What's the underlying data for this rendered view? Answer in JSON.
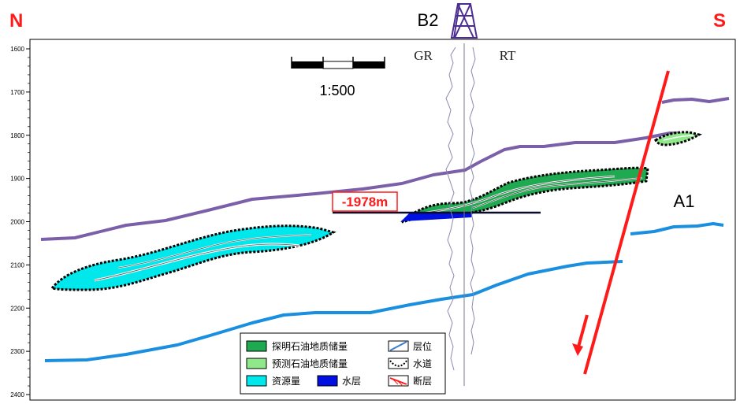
{
  "compass": {
    "north": "N",
    "south": "S"
  },
  "well": {
    "name": "B2",
    "log_left": "GR",
    "log_right": "RT"
  },
  "scale": {
    "label": "1:500"
  },
  "annotation": {
    "depth_label": "-1978m",
    "fault_name": "A1"
  },
  "depth_axis": {
    "ticks": [
      "1600",
      "1700",
      "1800",
      "1900",
      "2000",
      "2100",
      "2200",
      "2300",
      "2400"
    ]
  },
  "legend": {
    "items": [
      {
        "label": "探明石油地质储量",
        "color": "#1faa52"
      },
      {
        "label": "层位",
        "color": "#3a7fd0"
      },
      {
        "label": "预测石油地质储量",
        "color": "#8fe88a"
      },
      {
        "label": "水道",
        "color": "#000000"
      },
      {
        "label": "资源量",
        "color": "#00e8ec"
      },
      {
        "label": "水层",
        "color": "#0010e0"
      },
      {
        "label": "断层",
        "color": "#ff1a1a"
      }
    ]
  },
  "colors": {
    "north_south": "#ff1a1a",
    "horizon_upper": "#7b5fa8",
    "horizon_lower": "#1a8fe0",
    "fault": "#ff1a1a",
    "derrick": "#4b2d8f"
  }
}
